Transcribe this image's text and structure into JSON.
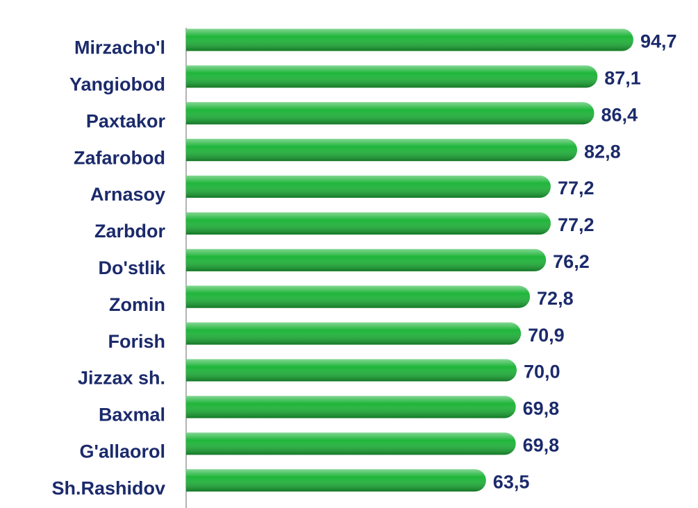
{
  "chart_data": {
    "type": "bar",
    "orientation": "horizontal",
    "categories": [
      "Mirzacho'l",
      "Yangiobod",
      "Paxtakor",
      "Zafarobod",
      "Arnasoy",
      "Zarbdor",
      "Do'stlik",
      "Zomin",
      "Forish",
      "Jizzax sh.",
      "Baxmal",
      "G'allaorol",
      "Sh.Rashidov"
    ],
    "values": [
      94.7,
      87.1,
      86.4,
      82.8,
      77.2,
      77.2,
      76.2,
      72.8,
      70.9,
      70.0,
      69.8,
      69.8,
      63.5
    ],
    "value_labels": [
      "94,7",
      "87,1",
      "86,4",
      "82,8",
      "77,2",
      "77,2",
      "76,2",
      "72,8",
      "70,9",
      "70,0",
      "69,8",
      "69,8",
      "63,5"
    ],
    "color": "#1fb53a",
    "xlim": [
      0,
      100
    ]
  }
}
